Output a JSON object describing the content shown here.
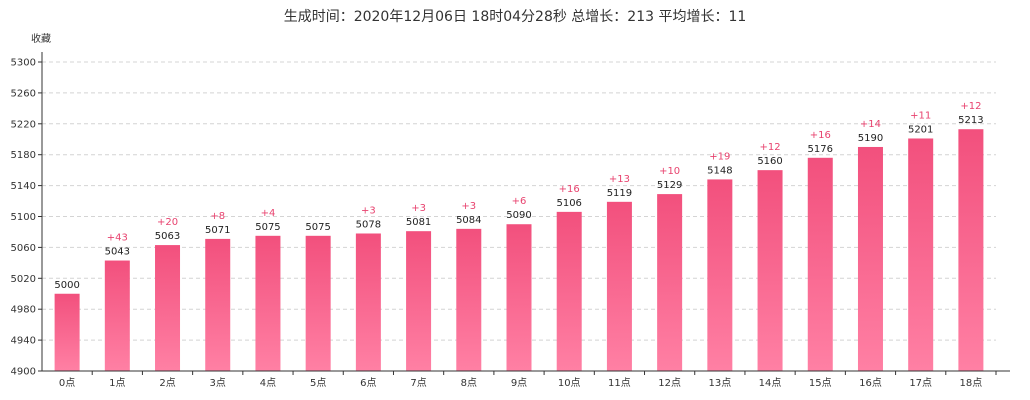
{
  "chart_data": {
    "type": "bar",
    "title": "生成时间：2020年12月06日 18时04分28秒  总增长：213  平均增长：11",
    "ylabel": "收藏",
    "xlabel": "",
    "ylim": [
      4900,
      5300
    ],
    "yticks": [
      4900,
      4940,
      4980,
      5020,
      5060,
      5100,
      5140,
      5180,
      5220,
      5260,
      5300
    ],
    "grid": true,
    "bar_color_top": "#f2507d",
    "bar_color_bottom": "#ff80a4",
    "increment_color": "#e8436f",
    "categories": [
      "0点",
      "1点",
      "2点",
      "3点",
      "4点",
      "5点",
      "6点",
      "7点",
      "8点",
      "9点",
      "10点",
      "11点",
      "12点",
      "13点",
      "14点",
      "15点",
      "16点",
      "17点",
      "18点"
    ],
    "values": [
      5000,
      5043,
      5063,
      5071,
      5075,
      5075,
      5078,
      5081,
      5084,
      5090,
      5106,
      5119,
      5129,
      5148,
      5160,
      5176,
      5190,
      5201,
      5213
    ],
    "increments": [
      "",
      "+43",
      "+20",
      "+8",
      "+4",
      "",
      "+3",
      "+3",
      "+3",
      "+6",
      "+16",
      "+13",
      "+10",
      "+19",
      "+12",
      "+16",
      "+14",
      "+11",
      "+12"
    ]
  }
}
